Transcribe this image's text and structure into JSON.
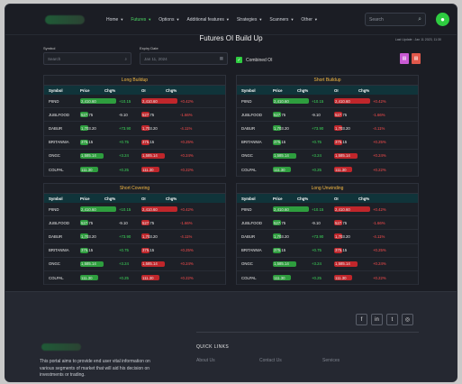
{
  "nav": {
    "items": [
      {
        "label": "Home",
        "active": false
      },
      {
        "label": "Futures",
        "active": true
      },
      {
        "label": "Options",
        "active": false
      },
      {
        "label": "Additional features",
        "active": false
      },
      {
        "label": "Strategies",
        "active": false
      },
      {
        "label": "Scanners",
        "active": false
      },
      {
        "label": "Other",
        "active": false
      }
    ],
    "search_placeholder": "Search"
  },
  "page": {
    "title": "Futures OI Build Up",
    "last_update": "Last Update : Jan 11 2023, 11:30"
  },
  "filters": {
    "symbol_label": "Symbol",
    "symbol_placeholder": "Search",
    "expiry_label": "Expiry Date",
    "expiry_value": "Jan 11, 2024",
    "combined_label": "Combined OI"
  },
  "columns": [
    "Symbol",
    "Price",
    "Chg%",
    "OI",
    "Chg%"
  ],
  "panels": [
    {
      "title": "Long Buildup",
      "rows": [
        {
          "symbol": "PIIND",
          "price": "2,410.60",
          "pchg": "+10.15",
          "oi": "2,410.60",
          "oichg": "+0.42%",
          "pbar": 0.9,
          "obar": 0.9
        },
        {
          "symbol": "JUBLFOOD",
          "price": "527.75",
          "pchg": "-9.10",
          "oi": "527.75",
          "oichg": "-1.66%",
          "pbar": 0,
          "obar": 0
        },
        {
          "symbol": "DABUR",
          "price": "1,703.20",
          "pchg": "+73.90",
          "oi": "1,703.20",
          "oichg": "-4.11%",
          "pbar": 0,
          "obar": 0
        },
        {
          "symbol": "BRITANNIA",
          "price": "375.15",
          "pchg": "+0.75",
          "oi": "375.15",
          "oichg": "+0.25%",
          "pbar": 0,
          "obar": 0
        },
        {
          "symbol": "ONGC",
          "price": "1,585.14",
          "pchg": "+3.24",
          "oi": "1,585.14",
          "oichg": "+0.24%",
          "pbar": 0.6,
          "obar": 0.6
        },
        {
          "symbol": "COLPAL",
          "price": "111.30",
          "pchg": "+0.25",
          "oi": "111.30",
          "oichg": "+0.22%",
          "pbar": 0.45,
          "obar": 0.45
        }
      ]
    },
    {
      "title": "Short Buildup",
      "rows": [
        {
          "symbol": "PIIND",
          "price": "2,410.60",
          "pchg": "+10.15",
          "oi": "2,410.60",
          "oichg": "+0.42%",
          "pbar": 0.9,
          "obar": 0.9
        },
        {
          "symbol": "JUBLFOOD",
          "price": "527.75",
          "pchg": "-9.10",
          "oi": "527.75",
          "oichg": "-1.66%",
          "pbar": 0,
          "obar": 0
        },
        {
          "symbol": "DABUR",
          "price": "1,703.20",
          "pchg": "+73.90",
          "oi": "1,703.20",
          "oichg": "-4.11%",
          "pbar": 0,
          "obar": 0
        },
        {
          "symbol": "BRITANNIA",
          "price": "375.15",
          "pchg": "+0.75",
          "oi": "375.15",
          "oichg": "+0.25%",
          "pbar": 0,
          "obar": 0
        },
        {
          "symbol": "ONGC",
          "price": "1,585.14",
          "pchg": "+3.24",
          "oi": "1,585.14",
          "oichg": "+0.24%",
          "pbar": 0.6,
          "obar": 0.6
        },
        {
          "symbol": "COLPAL",
          "price": "111.30",
          "pchg": "+0.25",
          "oi": "111.30",
          "oichg": "+0.22%",
          "pbar": 0.45,
          "obar": 0.45
        }
      ]
    },
    {
      "title": "Short Covering",
      "rows": [
        {
          "symbol": "PIIND",
          "price": "2,410.60",
          "pchg": "+10.15",
          "oi": "2,410.60",
          "oichg": "+0.42%",
          "pbar": 0.9,
          "obar": 0.9
        },
        {
          "symbol": "JUBLFOOD",
          "price": "527.75",
          "pchg": "-9.10",
          "oi": "527.75",
          "oichg": "-1.66%",
          "pbar": 0,
          "obar": 0
        },
        {
          "symbol": "DABUR",
          "price": "1,703.20",
          "pchg": "+73.90",
          "oi": "1,703.20",
          "oichg": "-4.11%",
          "pbar": 0,
          "obar": 0
        },
        {
          "symbol": "BRITANNIA",
          "price": "375.15",
          "pchg": "+0.75",
          "oi": "375.15",
          "oichg": "+0.25%",
          "pbar": 0,
          "obar": 0
        },
        {
          "symbol": "ONGC",
          "price": "1,585.14",
          "pchg": "+3.24",
          "oi": "1,585.14",
          "oichg": "+0.24%",
          "pbar": 0.6,
          "obar": 0.6
        },
        {
          "symbol": "COLPAL",
          "price": "111.30",
          "pchg": "+0.25",
          "oi": "111.30",
          "oichg": "+0.22%",
          "pbar": 0.45,
          "obar": 0.45
        }
      ]
    },
    {
      "title": "Long Unwinding",
      "rows": [
        {
          "symbol": "PIIND",
          "price": "2,410.60",
          "pchg": "+10.15",
          "oi": "2,410.60",
          "oichg": "+0.42%",
          "pbar": 0.9,
          "obar": 0.9
        },
        {
          "symbol": "JUBLFOOD",
          "price": "527.75",
          "pchg": "-9.10",
          "oi": "527.75",
          "oichg": "-1.66%",
          "pbar": 0,
          "obar": 0
        },
        {
          "symbol": "DABUR",
          "price": "1,703.20",
          "pchg": "+73.90",
          "oi": "1,703.20",
          "oichg": "-4.11%",
          "pbar": 0,
          "obar": 0
        },
        {
          "symbol": "BRITANNIA",
          "price": "375.15",
          "pchg": "+0.75",
          "oi": "375.15",
          "oichg": "+0.25%",
          "pbar": 0,
          "obar": 0
        },
        {
          "symbol": "ONGC",
          "price": "1,585.14",
          "pchg": "+3.24",
          "oi": "1,585.14",
          "oichg": "+0.24%",
          "pbar": 0.6,
          "obar": 0.6
        },
        {
          "symbol": "COLPAL",
          "price": "111.30",
          "pchg": "+0.25",
          "oi": "111.30",
          "oichg": "+0.22%",
          "pbar": 0.45,
          "obar": 0.45
        }
      ]
    }
  ],
  "footer": {
    "description": "This portal aims to provide end user vital information on various segments of market that will aid his decision on investments or trading.",
    "quick_links_title": "QUICK LINKS",
    "links": [
      "About Us",
      "Contact Us",
      "Services"
    ],
    "social": [
      "facebook-icon",
      "linkedin-icon",
      "twitter-icon",
      "instagram-icon"
    ]
  },
  "colors": {
    "accent": "#2ecc40",
    "highlight": "#f5b942",
    "negative": "#ff4d4d",
    "header": "#10343a"
  }
}
